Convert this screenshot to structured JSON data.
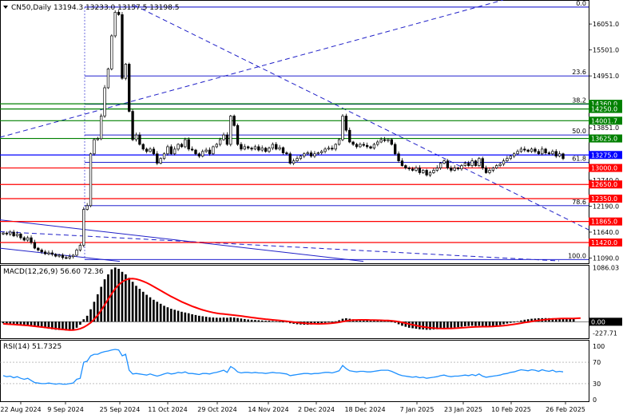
{
  "header": {
    "symbol_line": "CN50,Daily  13194.3 13233.0 13157.5 13198.5"
  },
  "colors": {
    "bg": "#ffffff",
    "grid": "#000000",
    "text": "#000000",
    "candle_up": "#ffffff",
    "candle_down": "#000000",
    "fib": "#0000c8",
    "trend": "#2020c8",
    "support": "#ff0000",
    "resistance": "#008000",
    "current": "#0000ff",
    "macd_hist": "#000000",
    "macd_signal": "#ff0000",
    "rsi": "#1e90ff",
    "label_red_bg": "#ff0000",
    "label_green_bg": "#008000",
    "label_blue_bg": "#0000ff"
  },
  "chart_data": [
    {
      "type": "candlestick",
      "name": "price",
      "title": "CN50,Daily",
      "ohlc_header": {
        "open": 13194.3,
        "high": 13233.0,
        "low": 13157.5,
        "close": 13198.5
      },
      "ylim": [
        10980,
        16560
      ],
      "y_tick_labels": [
        "16051.0",
        "15501.0",
        "14951.0",
        "13851.0",
        "13301.0",
        "12740.0",
        "12190.0",
        "11640.0",
        "11090.0"
      ],
      "close_series": [
        11620,
        11600,
        11640,
        11560,
        11600,
        11520,
        11470,
        11520,
        11420,
        11300,
        11260,
        11220,
        11180,
        11200,
        11170,
        11130,
        11150,
        11100,
        11090,
        11120,
        11150,
        11260,
        11360,
        12120,
        12200,
        13300,
        13600,
        13620,
        14100,
        14700,
        15100,
        15800,
        16300,
        16250,
        14900,
        15200,
        14200,
        13600,
        13700,
        13500,
        13400,
        13350,
        13400,
        13300,
        13100,
        13200,
        13300,
        13450,
        13300,
        13400,
        13500,
        13450,
        13600,
        13400,
        13380,
        13300,
        13250,
        13350,
        13380,
        13300,
        13450,
        13500,
        13600,
        13700,
        13500,
        14100,
        13900,
        13500,
        13400,
        13450,
        13420,
        13400,
        13450,
        13380,
        13420,
        13350,
        13420,
        13500,
        13400,
        13430,
        13320,
        13300,
        13100,
        13150,
        13200,
        13250,
        13300,
        13320,
        13250,
        13300,
        13320,
        13350,
        13400,
        13420,
        13400,
        13500,
        13600,
        14100,
        13800,
        13550,
        13500,
        13450,
        13500,
        13480,
        13450,
        13420,
        13500,
        13550,
        13600,
        13580,
        13600,
        13500,
        13300,
        13150,
        13050,
        13000,
        12980,
        12950,
        13000,
        12900,
        12950,
        12850,
        12900,
        12950,
        13000,
        13100,
        13150,
        13000,
        12950,
        13000,
        12980,
        13050,
        13100,
        13050,
        13150,
        13050,
        13200,
        13000,
        12900,
        12950,
        13000,
        13050,
        13080,
        13150,
        13200,
        13250,
        13300,
        13350,
        13400,
        13380,
        13350,
        13400,
        13350,
        13300,
        13400,
        13320,
        13300,
        13350,
        13250,
        13300,
        13198
      ],
      "horizontal_levels": [
        {
          "label": "14360.0",
          "value": 14360,
          "color": "resistance"
        },
        {
          "label": "14250.0",
          "value": 14250,
          "color": "resistance"
        },
        {
          "label": "14001.7",
          "value": 14001.7,
          "color": "resistance"
        },
        {
          "label": "13625.0",
          "value": 13625,
          "color": "resistance"
        },
        {
          "label": "13275.0",
          "value": 13275,
          "color": "current"
        },
        {
          "label": "13000.0",
          "value": 13000,
          "color": "support"
        },
        {
          "label": "12650.0",
          "value": 12650,
          "color": "support"
        },
        {
          "label": "12350.0",
          "value": 12350,
          "color": "support"
        },
        {
          "label": "11865.0",
          "value": 11865,
          "color": "support"
        },
        {
          "label": "11420.0",
          "value": 11420,
          "color": "support"
        }
      ],
      "fibonacci": [
        {
          "label": "0.0",
          "value": 16410
        },
        {
          "label": "23.6",
          "value": 14950
        },
        {
          "label": "38.2",
          "value": 14350
        },
        {
          "label": "50.0",
          "value": 13700
        },
        {
          "label": "61.8",
          "value": 13120
        },
        {
          "label": "78.6",
          "value": 12200
        },
        {
          "label": "100.0",
          "value": 11060
        }
      ]
    },
    {
      "type": "bar",
      "name": "macd",
      "title": "MACD(12,26,9) 56.60 72.36",
      "ylim": [
        -330,
        1140
      ],
      "y_tick_labels": [
        {
          "label": "1086.03",
          "value": 1086.03
        },
        {
          "label": "0.00",
          "value": 0
        },
        {
          "label": "-227.71",
          "value": -227.71
        }
      ],
      "histogram": [
        -30,
        -40,
        -45,
        -50,
        -55,
        -60,
        -70,
        -80,
        -90,
        -100,
        -110,
        -120,
        -130,
        -140,
        -150,
        -160,
        -165,
        -170,
        -175,
        -180,
        -160,
        -120,
        -60,
        50,
        120,
        250,
        400,
        550,
        700,
        850,
        950,
        1050,
        1086,
        1060,
        1000,
        950,
        880,
        800,
        720,
        660,
        600,
        540,
        490,
        440,
        400,
        360,
        320,
        290,
        260,
        240,
        220,
        200,
        185,
        170,
        150,
        135,
        120,
        110,
        100,
        90,
        85,
        80,
        80,
        85,
        80,
        90,
        85,
        75,
        65,
        55,
        45,
        40,
        35,
        30,
        25,
        20,
        20,
        15,
        10,
        5,
        0,
        -10,
        -30,
        -40,
        -50,
        -55,
        -60,
        -60,
        -55,
        -50,
        -40,
        -30,
        -20,
        -10,
        0,
        10,
        30,
        60,
        70,
        60,
        50,
        40,
        35,
        30,
        28,
        25,
        25,
        22,
        20,
        18,
        15,
        5,
        -20,
        -50,
        -80,
        -100,
        -120,
        -130,
        -140,
        -150,
        -155,
        -160,
        -160,
        -155,
        -150,
        -140,
        -130,
        -125,
        -120,
        -115,
        -110,
        -100,
        -90,
        -85,
        -80,
        -85,
        -80,
        -90,
        -100,
        -95,
        -85,
        -75,
        -65,
        -50,
        -35,
        -20,
        -5,
        10,
        25,
        40,
        50,
        60,
        65,
        70,
        72,
        73,
        72,
        70,
        68,
        66,
        62,
        60,
        58,
        56
      ],
      "signal": [
        -40,
        -45,
        -50,
        -55,
        -60,
        -65,
        -70,
        -75,
        -82,
        -90,
        -98,
        -106,
        -114,
        -122,
        -130,
        -138,
        -146,
        -154,
        -160,
        -166,
        -165,
        -158,
        -140,
        -110,
        -70,
        -20,
        50,
        130,
        230,
        340,
        450,
        560,
        660,
        740,
        800,
        840,
        860,
        865,
        855,
        835,
        810,
        780,
        745,
        705,
        665,
        625,
        585,
        545,
        505,
        470,
        435,
        400,
        370,
        340,
        310,
        285,
        260,
        238,
        218,
        200,
        185,
        172,
        162,
        155,
        148,
        140,
        132,
        124,
        115,
        105,
        95,
        86,
        77,
        68,
        60,
        52,
        45,
        38,
        31,
        24,
        16,
        8,
        0,
        -8,
        -15,
        -22,
        -28,
        -34,
        -38,
        -41,
        -42,
        -41,
        -38,
        -34,
        -28,
        -20,
        -10,
        2,
        15,
        25,
        32,
        36,
        38,
        38,
        37,
        35,
        33,
        31,
        29,
        27,
        25,
        20,
        12,
        2,
        -12,
        -28,
        -45,
        -60,
        -75,
        -90,
        -102,
        -112,
        -120,
        -127,
        -132,
        -135,
        -136,
        -135,
        -133,
        -130,
        -126,
        -121,
        -116,
        -111,
        -107,
        -103,
        -100,
        -99,
        -98,
        -96,
        -93,
        -89,
        -84,
        -77,
        -69,
        -60,
        -50,
        -40,
        -28,
        -16,
        -5,
        6,
        17,
        27,
        36,
        44,
        51,
        56,
        60,
        63,
        65,
        66,
        66,
        66,
        70,
        72
      ]
    },
    {
      "type": "line",
      "name": "rsi",
      "title": "RSI(14) 51.7325",
      "ylim": [
        0,
        100
      ],
      "y_tick_labels": [
        {
          "label": "100",
          "value": 100
        },
        {
          "label": "70",
          "value": 70
        },
        {
          "label": "30",
          "value": 30
        },
        {
          "label": "0",
          "value": 0
        }
      ],
      "values": [
        45,
        43,
        44,
        41,
        43,
        40,
        38,
        40,
        36,
        32,
        31,
        30,
        30,
        31,
        30,
        29,
        30,
        29,
        29,
        30,
        31,
        38,
        40,
        70,
        72,
        82,
        85,
        85,
        88,
        90,
        91,
        93,
        94,
        93,
        82,
        85,
        55,
        48,
        49,
        48,
        47,
        46,
        48,
        46,
        44,
        46,
        48,
        50,
        48,
        49,
        51,
        50,
        52,
        49,
        49,
        48,
        47,
        49,
        49,
        48,
        50,
        51,
        53,
        55,
        51,
        62,
        58,
        52,
        50,
        51,
        51,
        50,
        51,
        50,
        50,
        49,
        50,
        51,
        50,
        50,
        49,
        48,
        45,
        46,
        47,
        48,
        49,
        49,
        48,
        49,
        49,
        50,
        51,
        51,
        50,
        52,
        54,
        64,
        58,
        54,
        53,
        52,
        53,
        53,
        52,
        52,
        53,
        54,
        55,
        55,
        55,
        53,
        50,
        47,
        45,
        44,
        43,
        42,
        43,
        41,
        42,
        40,
        41,
        42,
        43,
        45,
        46,
        44,
        43,
        44,
        44,
        45,
        46,
        45,
        47,
        45,
        48,
        44,
        42,
        43,
        44,
        45,
        46,
        48,
        49,
        51,
        52,
        54,
        56,
        55,
        54,
        56,
        55,
        53,
        56,
        54,
        53,
        55,
        52,
        53,
        52
      ],
      "x_tick_labels": [
        "22 Aug 2024",
        "9 Sep 2024",
        "25 Sep 2024",
        "11 Oct 2024",
        "29 Oct 2024",
        "14 Nov 2024",
        "2 Dec 2024",
        "18 Dec 2024",
        "7 Jan 2025",
        "23 Jan 2025",
        "10 Feb 2025",
        "26 Feb 2025"
      ]
    }
  ]
}
